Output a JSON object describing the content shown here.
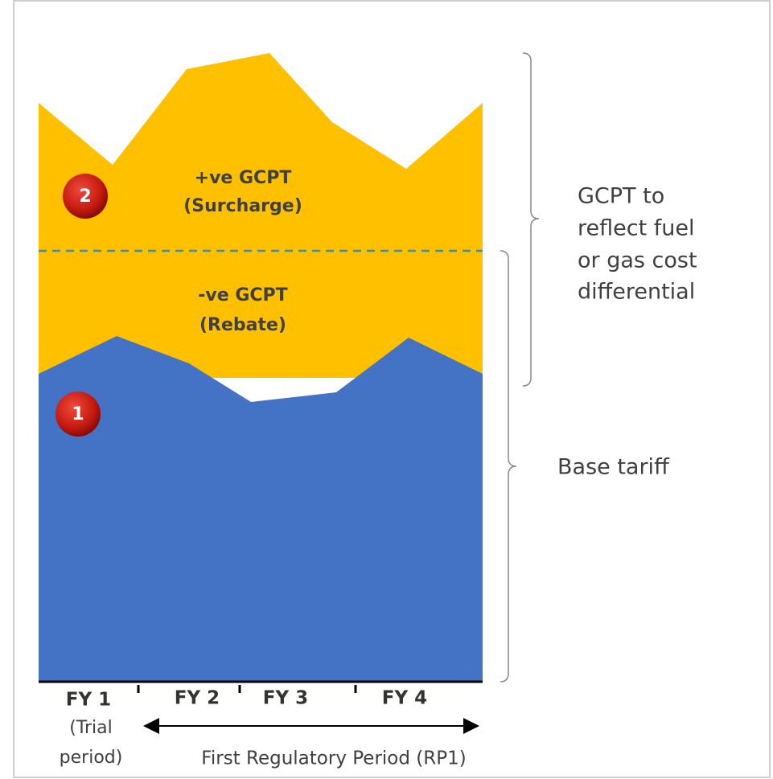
{
  "surcharge": {
    "title": "+ve GCPT",
    "subtitle": "(Surcharge)",
    "marker": "2"
  },
  "rebate": {
    "title": "-ve GCPT",
    "subtitle": "(Rebate)"
  },
  "base": {
    "marker": "1"
  },
  "annotations": {
    "gcpt": [
      "GCPT to",
      "reflect fuel",
      "or gas cost",
      "differential"
    ],
    "base": "Base tariff"
  },
  "periods": [
    "FY 1",
    "FY 2",
    "FY 3",
    "FY 4"
  ],
  "trial": [
    "(Trial",
    "period)"
  ],
  "regulatory_period": "First Regulatory Period (RP1)"
}
